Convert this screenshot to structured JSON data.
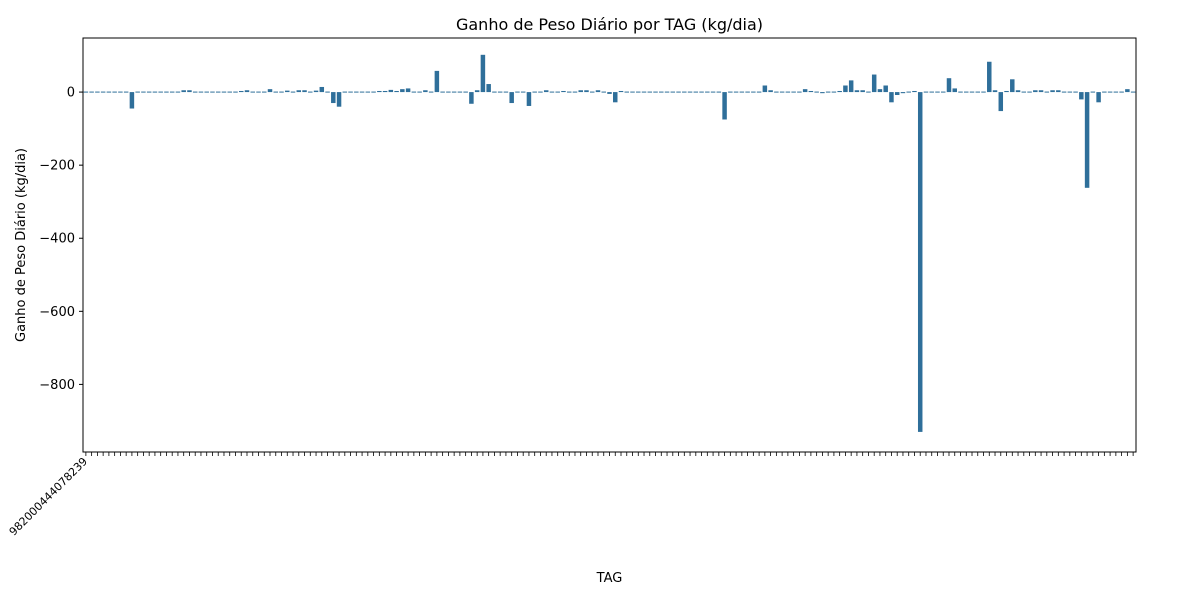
{
  "chart_data": {
    "type": "bar",
    "title": "Ganho de Peso Diário por TAG (kg/dia)",
    "xlabel": "TAG",
    "ylabel": "Ganho de Peso Diário (kg/dia)",
    "ylim": [
      -985,
      148
    ],
    "yticks": [
      0,
      -200,
      -400,
      -600,
      -800
    ],
    "ytick_labels": [
      "0",
      "−200",
      "−400",
      "−600",
      "−800"
    ],
    "bar_color": "#2f6f9a",
    "grid": false,
    "legend": "none",
    "first_tag_label": "982000444078239",
    "values": [
      1,
      1,
      1,
      1,
      1,
      -1,
      2,
      1,
      -45,
      2,
      2,
      2,
      -2,
      2,
      1,
      -1,
      1,
      5,
      5,
      0,
      0,
      2,
      -2,
      0,
      -1,
      2,
      0,
      3,
      5,
      2,
      2,
      2,
      8,
      0,
      0,
      4,
      2,
      5,
      5,
      0,
      4,
      14,
      2,
      -30,
      -40,
      -2,
      -2,
      -2,
      0,
      2,
      0,
      3,
      3,
      6,
      3,
      8,
      10,
      2,
      -2,
      5,
      2,
      58,
      2,
      2,
      0,
      0,
      -2,
      -32,
      5,
      102,
      22,
      -2,
      -2,
      2,
      -30,
      0,
      0,
      -38,
      -2,
      2,
      5,
      0,
      2,
      3,
      2,
      2,
      5,
      5,
      2,
      5,
      2,
      -5,
      -28,
      3,
      0,
      0,
      2,
      2,
      0,
      2,
      0,
      0,
      2,
      0,
      0,
      2,
      2,
      -2,
      2,
      2,
      2,
      -75,
      2,
      2,
      0,
      2,
      0,
      2,
      18,
      5,
      -2,
      -2,
      2,
      2,
      2,
      8,
      3,
      2,
      -3,
      -2,
      0,
      3,
      18,
      32,
      5,
      5,
      0,
      48,
      8,
      18,
      -28,
      -8,
      -3,
      0,
      3,
      -930,
      2,
      2,
      2,
      0,
      38,
      10,
      2,
      0,
      2,
      2,
      2,
      83,
      5,
      -52,
      3,
      35,
      5,
      2,
      2,
      5,
      5,
      0,
      5,
      5,
      0,
      0,
      0,
      -20,
      -262,
      2,
      -28,
      2,
      0,
      2,
      2,
      8,
      2
    ]
  }
}
